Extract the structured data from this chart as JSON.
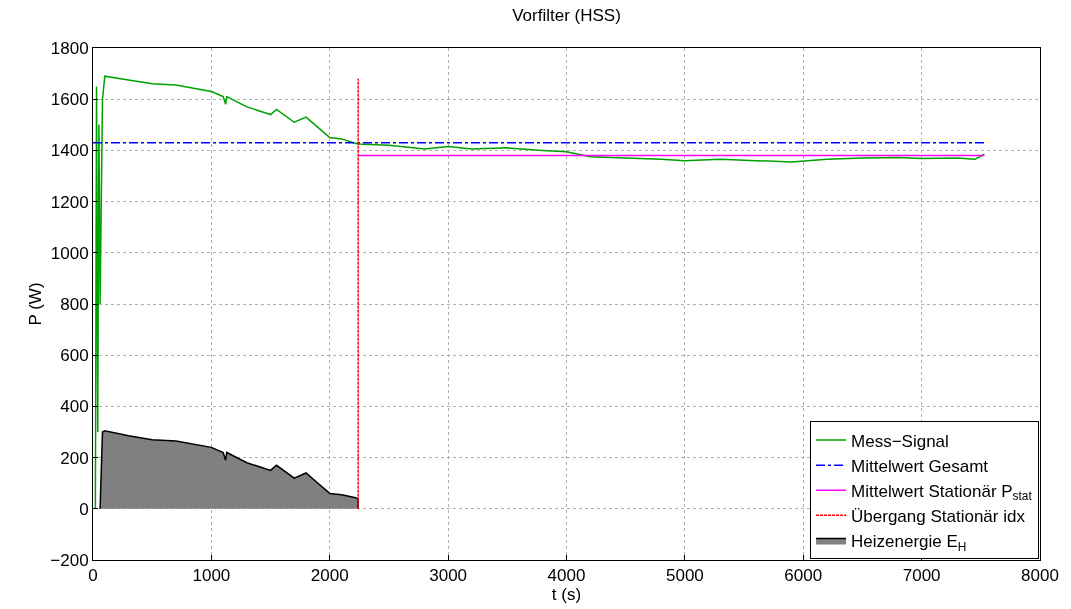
{
  "chart_data": {
    "type": "line",
    "title": "Vorfilter (HSS)",
    "xlabel": "t (s)",
    "ylabel": "P (W)",
    "xlim": [
      0,
      8000
    ],
    "xticks": [
      0,
      1000,
      2000,
      3000,
      4000,
      5000,
      6000,
      7000,
      8000
    ],
    "ylim": [
      -200,
      1800
    ],
    "yticks": [
      -200,
      0,
      200,
      400,
      600,
      800,
      1000,
      1200,
      1400,
      1600,
      1800
    ],
    "grid": true,
    "legend": "bottom right",
    "series": [
      {
        "name": "Mess−Signal",
        "color": "#00a000",
        "line_style": "solid",
        "x": [
          20,
          30,
          40,
          50,
          60,
          80,
          100,
          300,
          500,
          700,
          1000,
          1100,
          1120,
          1130,
          1300,
          1400,
          1500,
          1550,
          1700,
          1800,
          1900,
          2000,
          2100,
          2200,
          2240,
          2500,
          2800,
          3000,
          3200,
          3500,
          3800,
          4000,
          4200,
          4500,
          4800,
          5000,
          5300,
          5600,
          5900,
          6200,
          6500,
          6800,
          7000,
          7300,
          7450,
          7530
        ],
        "values": [
          0,
          1650,
          300,
          1500,
          800,
          1600,
          1690,
          1675,
          1660,
          1655,
          1630,
          1610,
          1580,
          1610,
          1570,
          1555,
          1540,
          1560,
          1510,
          1530,
          1490,
          1450,
          1445,
          1430,
          1425,
          1420,
          1405,
          1415,
          1405,
          1410,
          1400,
          1395,
          1375,
          1370,
          1365,
          1360,
          1365,
          1360,
          1355,
          1365,
          1370,
          1372,
          1368,
          1370,
          1365,
          1385
        ]
      },
      {
        "name": "Mittelwert Gesamt",
        "color": "#0000ff",
        "line_style": "dashdot",
        "x": [
          0,
          7530
        ],
        "values": [
          1430,
          1430
        ]
      },
      {
        "name": "Mittelwert Stationär P$_{stat}$",
        "color": "#ff00ff",
        "line_style": "solid",
        "x": [
          2240,
          7530
        ],
        "values": [
          1380,
          1380
        ]
      },
      {
        "name": "Übergang Stationär idx",
        "color": "#ff0000",
        "line_style": "dotted",
        "x": [
          2240,
          2240
        ],
        "values": [
          0,
          1680
        ]
      },
      {
        "name": "Heizenergie E$_{H}$",
        "type": "area",
        "color": "#808080",
        "x": [
          60,
          80,
          100,
          300,
          500,
          700,
          1000,
          1100,
          1120,
          1130,
          1300,
          1400,
          1500,
          1550,
          1700,
          1800,
          1900,
          2000,
          2100,
          2200,
          2240,
          2240
        ],
        "values": [
          0,
          300,
          305,
          285,
          270,
          265,
          240,
          220,
          190,
          220,
          180,
          165,
          150,
          170,
          120,
          140,
          100,
          60,
          55,
          45,
          40,
          0
        ]
      }
    ]
  }
}
